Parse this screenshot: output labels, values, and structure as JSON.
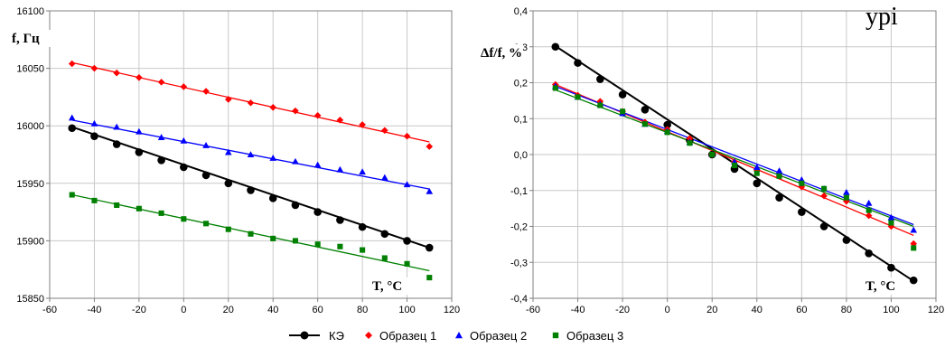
{
  "top_text_fragment": "урі",
  "legend": [
    {
      "label": "КЭ",
      "color": "#000000",
      "marker": "circle"
    },
    {
      "label": "Образец 1",
      "color": "#ff0000",
      "marker": "diamond"
    },
    {
      "label": "Образец 2",
      "color": "#0000ff",
      "marker": "triangle"
    },
    {
      "label": "Образец 3",
      "color": "#008000",
      "marker": "square"
    }
  ],
  "chart_data": [
    {
      "type": "line",
      "ylabel": "f, Гц",
      "xlabel": "T, °C",
      "xlim": [
        -60,
        120
      ],
      "ylim": [
        15850,
        16100
      ],
      "xticks": [
        "-60",
        "-40",
        "-20",
        "0",
        "20",
        "40",
        "60",
        "80",
        "100",
        "120"
      ],
      "yticks": [
        "15850",
        "15900",
        "15950",
        "16000",
        "16050",
        "16100"
      ],
      "grid": true,
      "x": [
        -50,
        -40,
        -30,
        -20,
        -10,
        0,
        10,
        20,
        30,
        40,
        50,
        60,
        70,
        80,
        90,
        100,
        110
      ],
      "series": [
        {
          "name": "КЭ",
          "color": "#000000",
          "marker": "circle",
          "values": [
            15998,
            15991,
            15984,
            15977,
            15970,
            15964,
            15957,
            15950,
            15944,
            15937,
            15931,
            15925,
            15918,
            15912,
            15906,
            15900,
            15894
          ],
          "fit": [
            15999,
            15894
          ]
        },
        {
          "name": "Образец 1",
          "color": "#ff0000",
          "marker": "diamond",
          "values": [
            16054,
            16050,
            16046,
            16042,
            16038,
            16034,
            16030,
            16023,
            16020,
            16016,
            16013,
            16009,
            16005,
            16001,
            15996,
            15991,
            15982
          ],
          "fit": [
            16055,
            15986
          ]
        },
        {
          "name": "Образец 2",
          "color": "#0000ff",
          "marker": "triangle",
          "values": [
            16007,
            16002,
            15999,
            15995,
            15990,
            15987,
            15983,
            15977,
            15975,
            15972,
            15969,
            15966,
            15962,
            15960,
            15955,
            15949,
            15943
          ],
          "fit": [
            16005,
            15945
          ]
        },
        {
          "name": "Образец 3",
          "color": "#008000",
          "marker": "square",
          "values": [
            15940,
            15935,
            15931,
            15928,
            15924,
            15919,
            15915,
            15910,
            15906,
            15902,
            15900,
            15897,
            15895,
            15892,
            15885,
            15880,
            15868
          ],
          "fit": [
            15940,
            15874
          ]
        }
      ]
    },
    {
      "type": "line",
      "ylabel": "Δf/f, %",
      "xlabel": "T, °C",
      "xlim": [
        -60,
        120
      ],
      "ylim": [
        -0.4,
        0.4
      ],
      "xticks": [
        "-60",
        "-40",
        "-20",
        "0",
        "20",
        "40",
        "60",
        "80",
        "100",
        "120"
      ],
      "yticks": [
        "-0,4",
        "-0,3",
        "-0,2",
        "-0,1",
        "0,0",
        "0,1",
        "0,2",
        "0,3",
        "0,4"
      ],
      "grid": true,
      "x": [
        -50,
        -40,
        -30,
        -20,
        -10,
        0,
        10,
        20,
        30,
        40,
        50,
        60,
        70,
        80,
        90,
        100,
        110
      ],
      "series": [
        {
          "name": "КЭ",
          "color": "#000000",
          "marker": "circle",
          "values": [
            0.3,
            0.255,
            0.21,
            0.167,
            0.125,
            0.083,
            0.04,
            0.0,
            -0.04,
            -0.08,
            -0.12,
            -0.16,
            -0.2,
            -0.238,
            -0.275,
            -0.315,
            -0.35
          ],
          "fit": [
            0.302,
            -0.352
          ]
        },
        {
          "name": "Образец 1",
          "color": "#ff0000",
          "marker": "diamond",
          "values": [
            0.195,
            0.165,
            0.148,
            0.12,
            0.09,
            0.07,
            0.045,
            0.0,
            -0.02,
            -0.045,
            -0.06,
            -0.09,
            -0.115,
            -0.13,
            -0.17,
            -0.2,
            -0.248
          ],
          "fit": [
            0.195,
            -0.225
          ]
        },
        {
          "name": "Образец 2",
          "color": "#0000ff",
          "marker": "triangle",
          "values": [
            0.19,
            0.16,
            0.14,
            0.115,
            0.085,
            0.065,
            0.035,
            0.0,
            -0.02,
            -0.035,
            -0.045,
            -0.07,
            -0.095,
            -0.105,
            -0.135,
            -0.175,
            -0.21
          ],
          "fit": [
            0.19,
            -0.195
          ]
        },
        {
          "name": "Образец 3",
          "color": "#008000",
          "marker": "square",
          "values": [
            0.185,
            0.16,
            0.137,
            0.12,
            0.085,
            0.062,
            0.032,
            0.0,
            -0.03,
            -0.052,
            -0.06,
            -0.08,
            -0.095,
            -0.12,
            -0.155,
            -0.19,
            -0.26
          ],
          "fit": [
            0.18,
            -0.2
          ]
        }
      ]
    }
  ]
}
